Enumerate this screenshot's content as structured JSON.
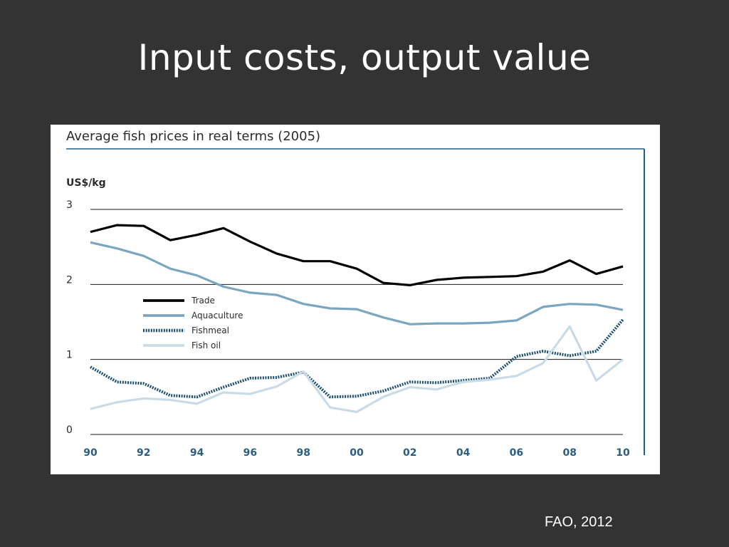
{
  "slide": {
    "title": "Input costs, output value",
    "source": "FAO, 2012"
  },
  "colors": {
    "background": "#333333",
    "panel": "#ffffff",
    "trade": "#000000",
    "aquaculture": "#7aa6c0",
    "fishmeal": "#1c4f6e",
    "fish_oil": "#c8dbe6",
    "frame": "#1f5f8b"
  },
  "chart_data": {
    "type": "line",
    "title": "Average fish prices in real terms (2005)",
    "ylabel": "US$/kg",
    "xlabel": "",
    "ylim": [
      0,
      3
    ],
    "yticks": [
      "0",
      "1",
      "2",
      "3"
    ],
    "xlim": [
      1990,
      2010
    ],
    "xticks": [
      "90",
      "92",
      "94",
      "96",
      "98",
      "00",
      "02",
      "04",
      "06",
      "08",
      "10"
    ],
    "grid": "horizontal",
    "legend_position": "center-left",
    "x": [
      1990,
      1991,
      1992,
      1993,
      1994,
      1995,
      1996,
      1997,
      1998,
      1999,
      2000,
      2001,
      2002,
      2003,
      2004,
      2005,
      2006,
      2007,
      2008,
      2009,
      2010
    ],
    "series": [
      {
        "name": "Trade",
        "style": "solid-thick",
        "values": [
          2.7,
          2.79,
          2.78,
          2.59,
          2.66,
          2.75,
          2.57,
          2.41,
          2.31,
          2.31,
          2.21,
          2.02,
          1.99,
          2.06,
          2.09,
          2.1,
          2.11,
          2.17,
          2.32,
          2.14,
          2.24
        ]
      },
      {
        "name": "Aquaculture",
        "style": "solid",
        "values": [
          2.56,
          2.48,
          2.38,
          2.21,
          2.12,
          1.97,
          1.89,
          1.86,
          1.74,
          1.68,
          1.67,
          1.56,
          1.47,
          1.48,
          1.48,
          1.49,
          1.52,
          1.7,
          1.74,
          1.73,
          1.66
        ]
      },
      {
        "name": "Fishmeal",
        "style": "dotted",
        "values": [
          0.9,
          0.7,
          0.68,
          0.52,
          0.5,
          0.63,
          0.75,
          0.76,
          0.83,
          0.5,
          0.51,
          0.58,
          0.7,
          0.69,
          0.72,
          0.75,
          1.04,
          1.11,
          1.05,
          1.11,
          1.53
        ]
      },
      {
        "name": "Fish oil",
        "style": "solid-light",
        "values": [
          0.34,
          0.43,
          0.48,
          0.46,
          0.41,
          0.56,
          0.54,
          0.64,
          0.84,
          0.36,
          0.3,
          0.5,
          0.63,
          0.6,
          0.7,
          0.73,
          0.78,
          0.95,
          1.44,
          0.72,
          1.0
        ]
      }
    ]
  }
}
